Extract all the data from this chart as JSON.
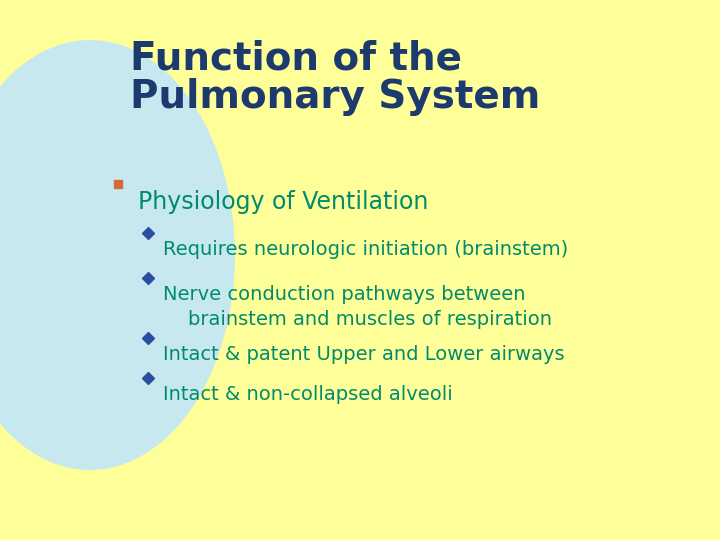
{
  "background_color": "#FFFF99",
  "circle_color": "#C8E8F0",
  "title_line1": "Function of the",
  "title_line2": "Pulmonary System",
  "title_color": "#1C3A6E",
  "title_fontsize": 28,
  "bullet1_text": "Physiology of Ventilation",
  "bullet1_color": "#008B6E",
  "bullet1_fontsize": 17,
  "bullet1_marker_color": "#D4693A",
  "sub_bullets": [
    "Requires neurologic initiation (brainstem)",
    "Nerve conduction pathways between\n    brainstem and muscles of respiration",
    "Intact & patent Upper and Lower airways",
    "Intact & non-collapsed alveoli"
  ],
  "sub_bullet_color": "#008B6E",
  "sub_bullet_fontsize": 14,
  "sub_bullet_marker_color": "#2B4FA0",
  "figsize": [
    7.2,
    5.4
  ],
  "dpi": 100
}
